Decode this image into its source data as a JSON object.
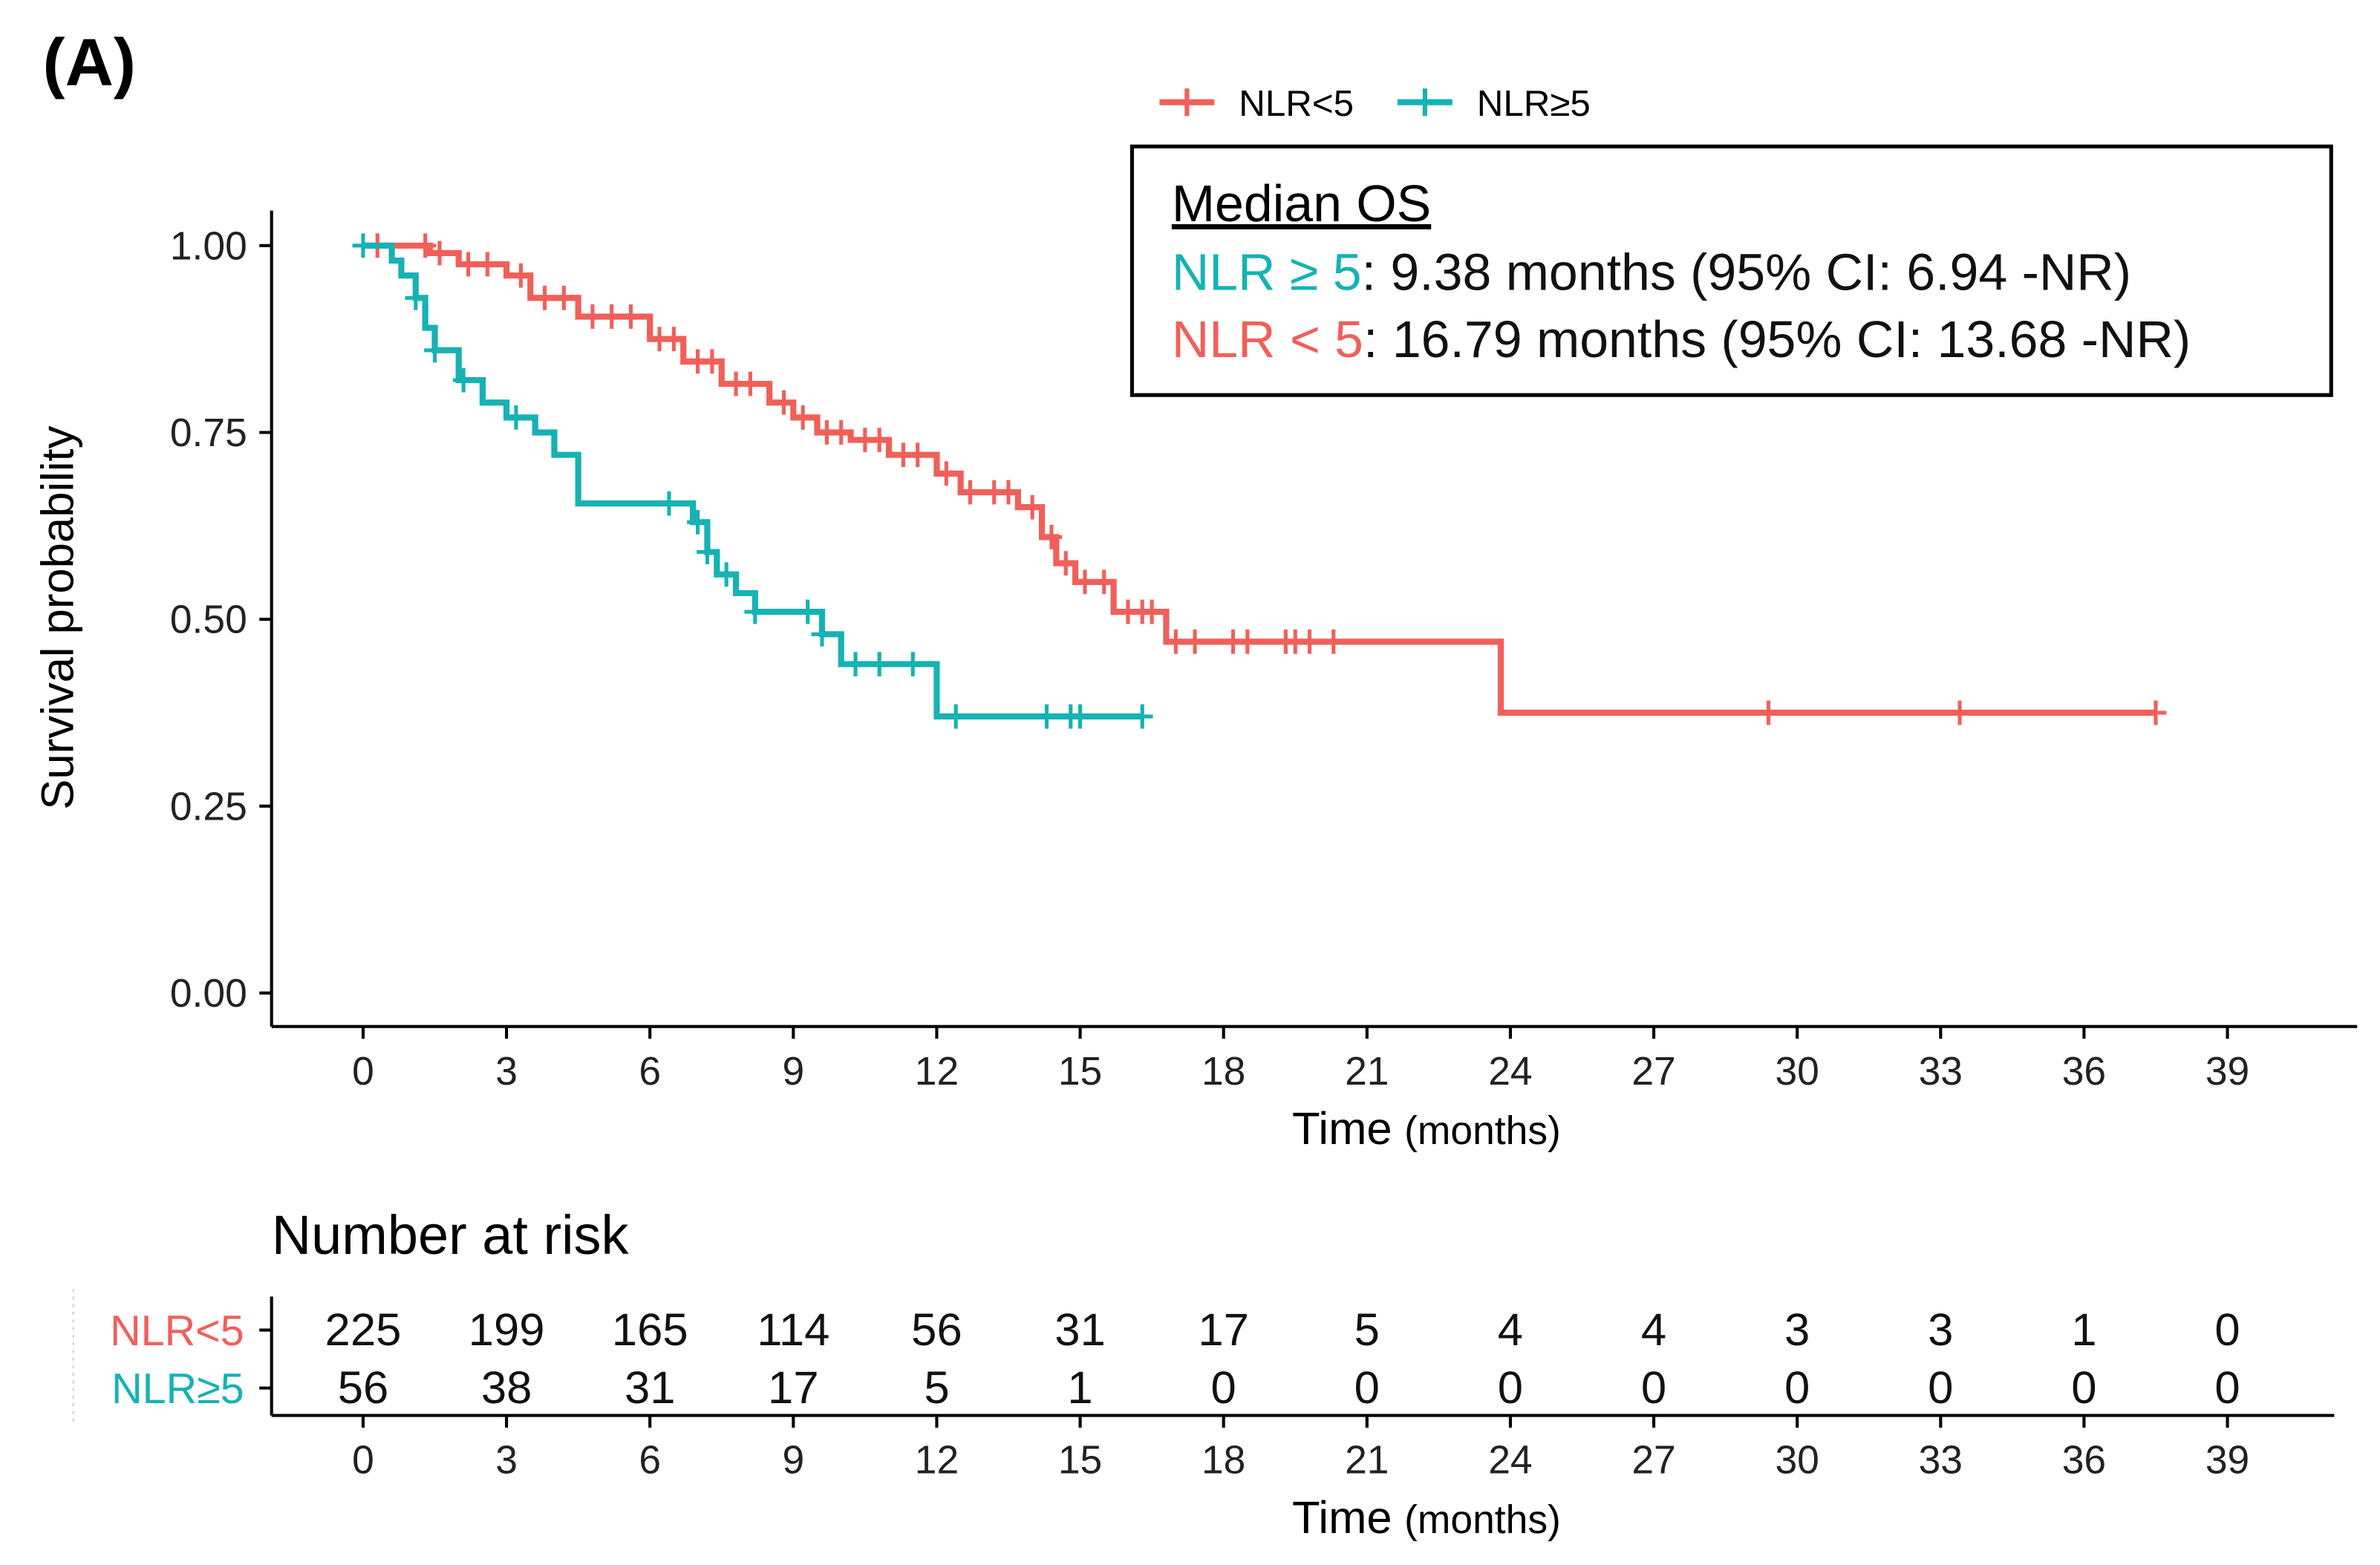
{
  "panel_label": "(A)",
  "chart_data": {
    "type": "line",
    "subtype": "kaplan-meier",
    "xlabel": "Time",
    "xlabel_unit": "(months)",
    "ylabel": "Survival probability",
    "xlim": [
      -2,
      41.5
    ],
    "ylim": [
      0,
      1.05
    ],
    "x_ticks": [
      0,
      3,
      6,
      9,
      12,
      15,
      18,
      21,
      24,
      27,
      30,
      33,
      36,
      39
    ],
    "y_ticks": [
      "0.00",
      "0.25",
      "0.50",
      "0.75",
      "1.00"
    ],
    "legend": {
      "placement": "top",
      "entries": [
        "NLR<5",
        "NLR≥5"
      ]
    },
    "series": [
      {
        "name": "NLR<5",
        "color": "#F0605A",
        "steps": [
          [
            0,
            1.0
          ],
          [
            1.4,
            0.99
          ],
          [
            2.0,
            0.975
          ],
          [
            3.0,
            0.96
          ],
          [
            3.5,
            0.93
          ],
          [
            4.5,
            0.905
          ],
          [
            6.0,
            0.875
          ],
          [
            6.7,
            0.845
          ],
          [
            7.5,
            0.815
          ],
          [
            8.5,
            0.79
          ],
          [
            9.0,
            0.77
          ],
          [
            9.5,
            0.75
          ],
          [
            10.2,
            0.74
          ],
          [
            11.0,
            0.72
          ],
          [
            12.0,
            0.695
          ],
          [
            12.5,
            0.67
          ],
          [
            13.7,
            0.65
          ],
          [
            14.2,
            0.61
          ],
          [
            14.5,
            0.575
          ],
          [
            14.9,
            0.55
          ],
          [
            15.7,
            0.51
          ],
          [
            16.8,
            0.47
          ],
          [
            23.8,
            0.375
          ]
        ],
        "end": 37.5,
        "censor_times": [
          0.3,
          1.3,
          1.6,
          2.2,
          2.6,
          3.3,
          3.8,
          4.2,
          4.8,
          5.2,
          5.6,
          6.2,
          6.5,
          7.0,
          7.3,
          7.8,
          8.1,
          8.8,
          9.2,
          9.7,
          10.0,
          10.5,
          10.8,
          11.3,
          11.6,
          12.2,
          12.7,
          13.2,
          13.5,
          14.0,
          14.4,
          14.7,
          15.1,
          15.5,
          16.0,
          16.3,
          16.5,
          17.0,
          17.4,
          18.2,
          18.5,
          19.3,
          19.5,
          19.8,
          20.3,
          29.4,
          33.4,
          37.5
        ]
      },
      {
        "name": "NLR≥5",
        "color": "#17B2B3",
        "steps": [
          [
            0,
            1.0
          ],
          [
            0.6,
            0.98
          ],
          [
            0.8,
            0.96
          ],
          [
            1.1,
            0.93
          ],
          [
            1.3,
            0.89
          ],
          [
            1.5,
            0.86
          ],
          [
            2.0,
            0.82
          ],
          [
            2.5,
            0.79
          ],
          [
            3.0,
            0.77
          ],
          [
            3.6,
            0.75
          ],
          [
            4.0,
            0.72
          ],
          [
            4.5,
            0.655
          ],
          [
            6.9,
            0.63
          ],
          [
            7.2,
            0.59
          ],
          [
            7.4,
            0.56
          ],
          [
            7.8,
            0.535
          ],
          [
            8.2,
            0.51
          ],
          [
            9.6,
            0.48
          ],
          [
            10.0,
            0.44
          ],
          [
            12.0,
            0.37
          ]
        ],
        "end": 16.3,
        "censor_times": [
          0,
          1.1,
          1.5,
          2.1,
          3.2,
          6.4,
          7.0,
          7.2,
          7.6,
          8.2,
          9.3,
          9.6,
          10.3,
          10.8,
          11.5,
          12.4,
          14.3,
          14.8,
          15.0,
          16.3
        ]
      }
    ],
    "annotation": {
      "title": "Median OS",
      "lines": [
        {
          "group": "NLR ≥ 5",
          "text": ": 9.38 months (95% CI: 6.94 -NR)",
          "color": "#17B2B3"
        },
        {
          "group": "NLR < 5",
          "text": ": 16.79 months (95% CI: 13.68 -NR)",
          "color": "#F0605A"
        }
      ]
    },
    "risk_table": {
      "title": "Number at risk",
      "xlabel": "Time",
      "xlabel_unit": "(months)",
      "rows": [
        {
          "name": "NLR<5",
          "color": "#F0605A",
          "values": [
            "225",
            "199",
            "165",
            "114",
            "56",
            "31",
            "17",
            "5",
            "4",
            "4",
            "3",
            "3",
            "1",
            "0"
          ]
        },
        {
          "name": "NLR≥5",
          "color": "#17B2B3",
          "values": [
            "56",
            "38",
            "31",
            "17",
            "5",
            "1",
            "0",
            "0",
            "0",
            "0",
            "0",
            "0",
            "0",
            "0"
          ]
        }
      ]
    }
  }
}
